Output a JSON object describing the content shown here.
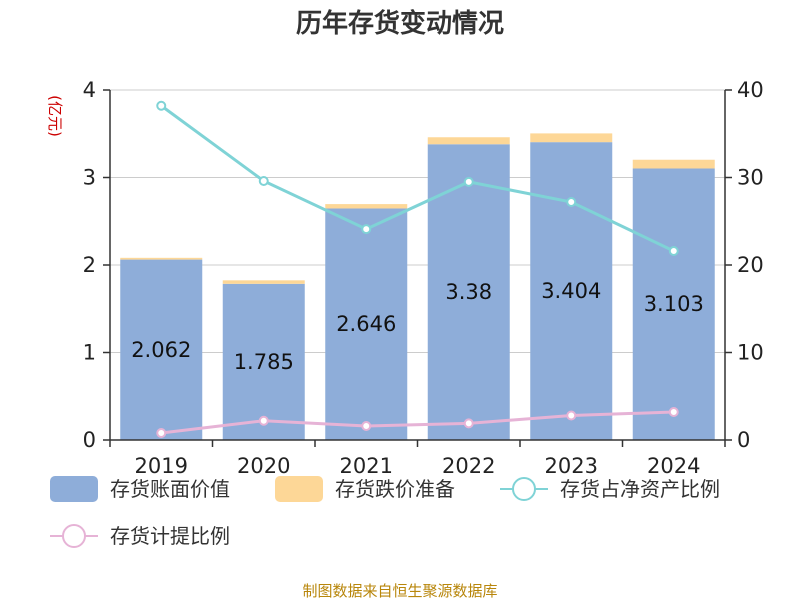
{
  "chart_data": {
    "type": "bar",
    "title": "历年存货变动情况",
    "categories": [
      "2019",
      "2020",
      "2021",
      "2022",
      "2023",
      "2024"
    ],
    "series": [
      {
        "name": "存货账面价值",
        "type": "bar",
        "axis": "left",
        "color": "#8eadd9",
        "values": [
          2.062,
          1.785,
          2.646,
          3.38,
          3.404,
          3.103
        ],
        "labels": [
          "2.062",
          "1.785",
          "2.646",
          "3.38",
          "3.404",
          "3.103"
        ]
      },
      {
        "name": "存货跌价准备",
        "type": "bar",
        "axis": "left",
        "stacked": true,
        "color": "#fdd797",
        "values": [
          0.02,
          0.04,
          0.05,
          0.08,
          0.1,
          0.1
        ]
      },
      {
        "name": "存货占净资产比例",
        "type": "line",
        "axis": "right",
        "color": "#7fd3d6",
        "values": [
          38.2,
          29.6,
          24.1,
          29.5,
          27.2,
          21.6
        ]
      },
      {
        "name": "存货计提比例",
        "type": "line",
        "axis": "right",
        "color": "#e6b3d6",
        "values": [
          0.8,
          2.2,
          1.6,
          1.9,
          2.8,
          3.2
        ]
      }
    ],
    "y_left": {
      "unit": "(亿元)",
      "range": [
        0,
        4
      ],
      "ticks": [
        "0",
        "1",
        "2",
        "3",
        "4"
      ]
    },
    "y_right": {
      "range": [
        0,
        40
      ],
      "ticks": [
        "0",
        "10",
        "20",
        "30",
        "40"
      ]
    },
    "grid": true,
    "legend_position": "bottom"
  },
  "source": "制图数据来自恒生聚源数据库"
}
